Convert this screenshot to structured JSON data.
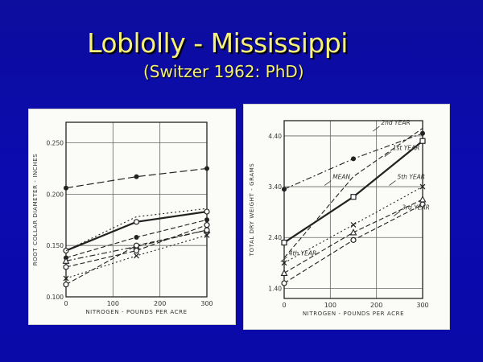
{
  "slide": {
    "title": "Loblolly - Mississippi",
    "subtitle": "(Switzer 1962: PhD)"
  },
  "colors": {
    "background": "#0b0bb0",
    "title": "#f4f07a",
    "panel": "#fbfbf8",
    "ink": "#333333"
  },
  "chart_data": [
    {
      "type": "line",
      "title": "",
      "xlabel": "NITROGEN - POUNDS PER ACRE",
      "ylabel": "ROOT COLLAR DIAMETER - INCHES",
      "x_ticks": [
        "0",
        "100",
        "200",
        "300"
      ],
      "y_ticks": [
        "0.100",
        "0.150",
        "0.200",
        "0.250"
      ],
      "xlim": [
        0,
        300
      ],
      "ylim": [
        0.1,
        0.27
      ],
      "grid": true,
      "x": [
        0,
        150,
        300
      ],
      "series": [
        {
          "values": [
            0.206,
            0.217,
            0.225
          ],
          "marker": "filled-circle",
          "dash": "long-dash"
        },
        {
          "values": [
            0.145,
            0.173,
            0.183
          ],
          "marker": "open-circle",
          "dash": "solid-thick"
        },
        {
          "values": [
            0.138,
            0.158,
            0.175
          ],
          "marker": "filled-circle",
          "dash": "dash"
        },
        {
          "values": [
            0.145,
            0.178,
            0.186
          ],
          "marker": "none",
          "dash": "dot"
        },
        {
          "values": [
            0.135,
            0.149,
            0.165
          ],
          "marker": "triangle",
          "dash": "dash-dot"
        },
        {
          "values": [
            0.129,
            0.145,
            0.17
          ],
          "marker": "open-circle",
          "dash": "dash"
        },
        {
          "values": [
            0.118,
            0.14,
            0.16
          ],
          "marker": "x",
          "dash": "dot"
        },
        {
          "values": [
            0.112,
            0.15,
            0.165
          ],
          "marker": "open-circle",
          "dash": "dash"
        }
      ]
    },
    {
      "type": "line",
      "title": "",
      "xlabel": "NITROGEN - POUNDS PER ACRE",
      "ylabel": "TOTAL DRY WEIGHT - GRAMS",
      "x_ticks": [
        "0",
        "100",
        "200",
        "300"
      ],
      "y_ticks": [
        "1.40",
        "2.40",
        "3.40",
        "4.40"
      ],
      "xlim": [
        0,
        300
      ],
      "ylim": [
        1.2,
        4.7
      ],
      "grid": true,
      "x": [
        0,
        150,
        300
      ],
      "series_labels": [
        "2nd YEAR",
        "1st YEAR",
        "MEAN",
        "5th YEAR",
        "3rd YEAR",
        "4th YEAR"
      ],
      "series": [
        {
          "values": [
            2.0,
            3.6,
            4.55
          ],
          "marker": "none",
          "dash": "dash"
        },
        {
          "values": [
            3.35,
            3.95,
            4.45
          ],
          "marker": "filled-circle",
          "dash": "dash-dot"
        },
        {
          "values": [
            2.3,
            3.2,
            4.3
          ],
          "marker": "open-square",
          "dash": "solid-thick"
        },
        {
          "values": [
            1.9,
            2.65,
            3.4
          ],
          "marker": "x",
          "dash": "dot"
        },
        {
          "values": [
            1.7,
            2.5,
            3.15
          ],
          "marker": "triangle",
          "dash": "dash"
        },
        {
          "values": [
            1.5,
            2.35,
            3.05
          ],
          "marker": "open-circle",
          "dash": "dash"
        }
      ]
    }
  ]
}
